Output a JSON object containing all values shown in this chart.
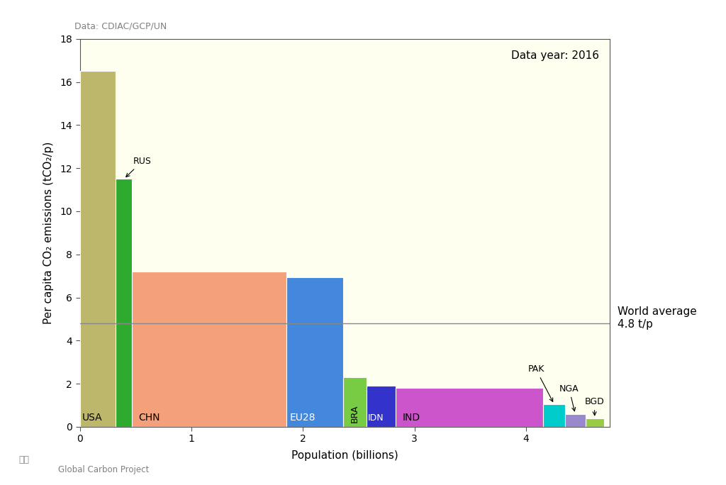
{
  "countries": [
    "USA",
    "RUS",
    "CHN",
    "EU28",
    "BRA",
    "IDN",
    "IND",
    "PAK",
    "NGA",
    "BGD"
  ],
  "populations": [
    0.323,
    0.144,
    1.383,
    0.51,
    0.208,
    0.262,
    1.324,
    0.193,
    0.186,
    0.163
  ],
  "emissions": [
    16.5,
    11.5,
    7.2,
    6.95,
    2.3,
    1.9,
    1.8,
    1.05,
    0.6,
    0.4
  ],
  "colors": [
    "#bdb76b",
    "#2eaa2e",
    "#f4a07a",
    "#4488dd",
    "#77cc44",
    "#3333cc",
    "#cc55cc",
    "#00cccc",
    "#9988cc",
    "#99cc44"
  ],
  "world_average": 4.8,
  "xlim": [
    0,
    4.75
  ],
  "ylim": [
    0,
    18
  ],
  "xlabel": "Population (billions)",
  "ylabel": "Per capita CO₂ emissions (tCO₂/p)",
  "data_source": "Data: CDIAC/GCP/UN",
  "data_year": "Data year: 2016",
  "world_avg_label": "World average\n4.8 t/p",
  "background_color": "#fffff0",
  "background_color_outer": "#ffffff",
  "footer": "Global Carbon Project"
}
